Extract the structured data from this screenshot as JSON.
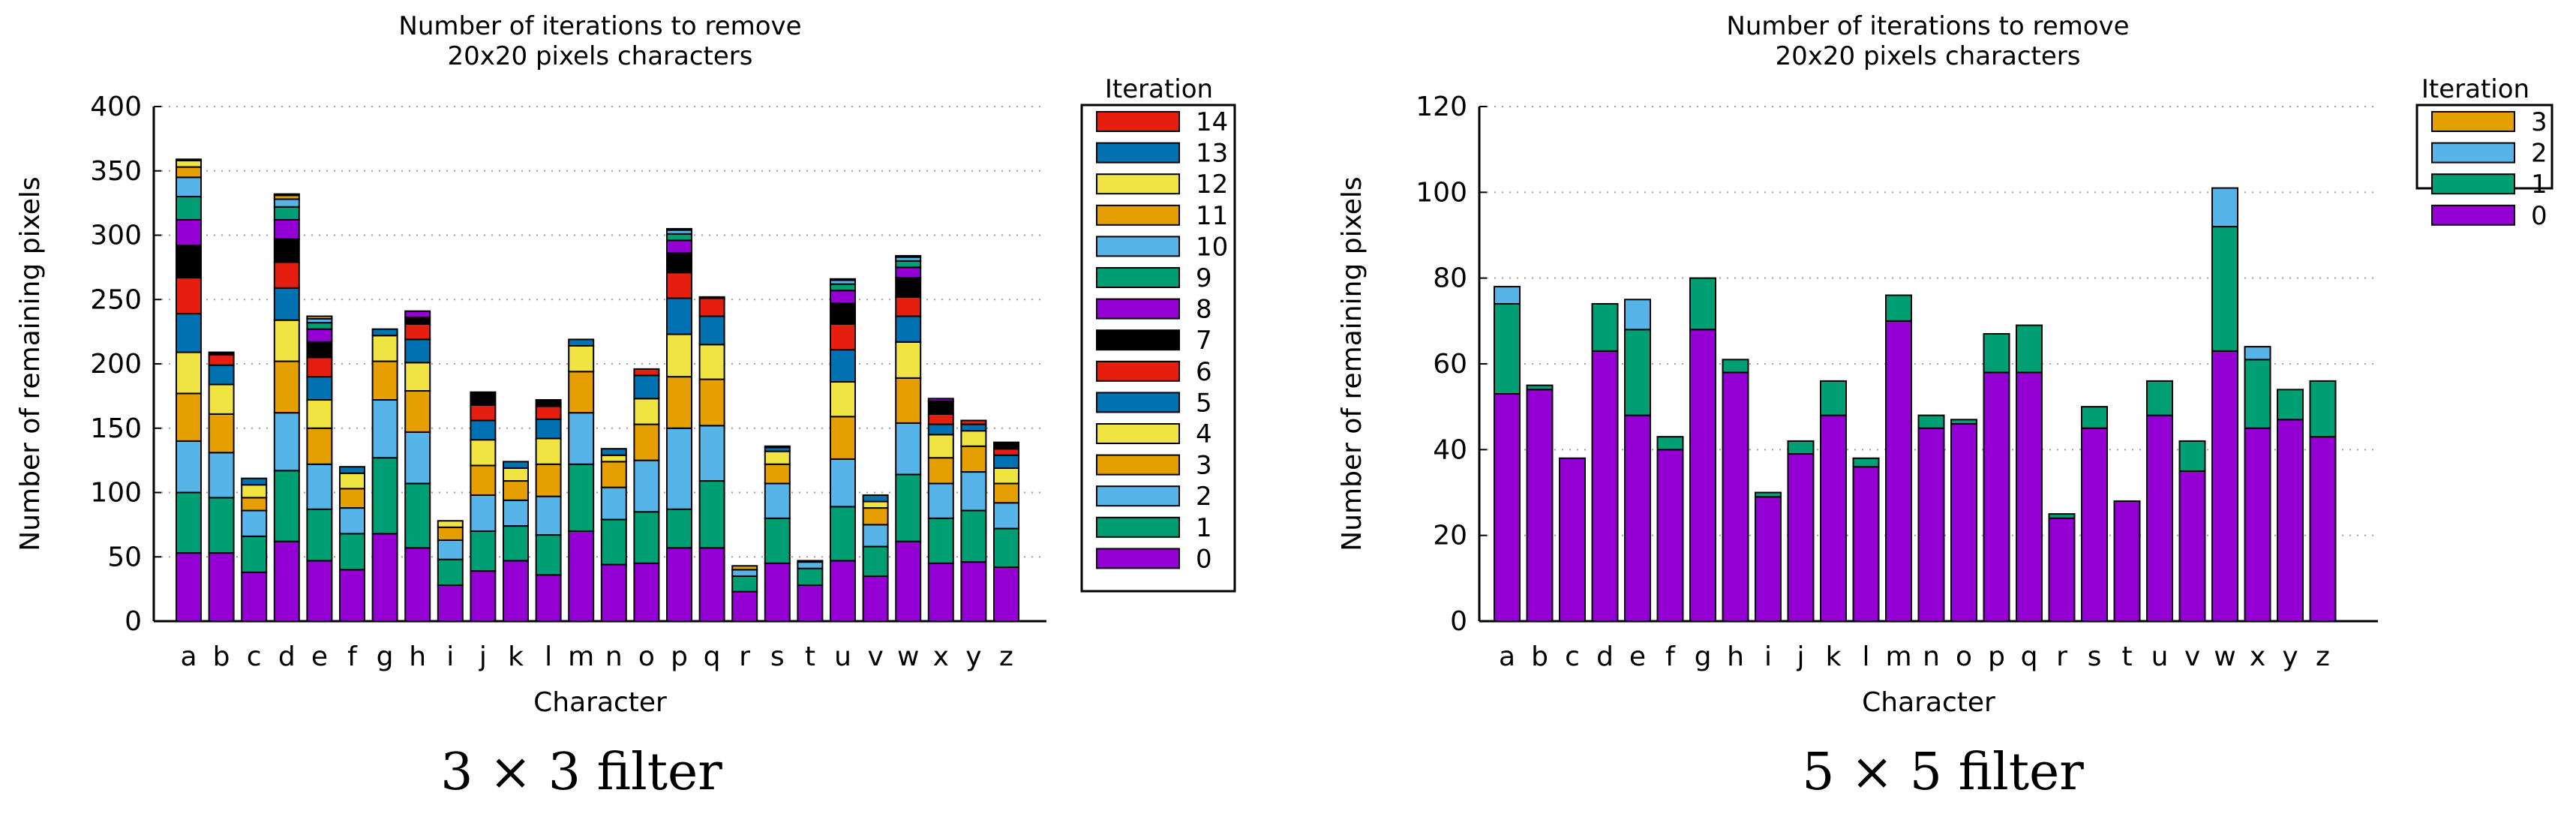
{
  "chart_data": [
    {
      "type": "bar",
      "stacked": true,
      "title": "Number of iterations to remove\n20x20 pixels characters",
      "xlabel": "Character",
      "ylabel": "Number of remaining pixels",
      "ylim": [
        0,
        400
      ],
      "yticks": [
        0,
        50,
        100,
        150,
        200,
        250,
        300,
        350,
        400
      ],
      "grid": "horizontal dotted",
      "caption": "3 × 3 filter",
      "legend_title": "Iteration",
      "legend_position": "right",
      "categories": [
        "a",
        "b",
        "c",
        "d",
        "e",
        "f",
        "g",
        "h",
        "i",
        "j",
        "k",
        "l",
        "m",
        "n",
        "o",
        "p",
        "q",
        "r",
        "s",
        "t",
        "u",
        "v",
        "w",
        "x",
        "y",
        "z"
      ],
      "series": [
        {
          "name": "0",
          "color": "#9400d3",
          "values": [
            53,
            53,
            38,
            62,
            47,
            40,
            68,
            57,
            28,
            39,
            47,
            36,
            70,
            44,
            45,
            57,
            57,
            23,
            45,
            28,
            47,
            35,
            62,
            45,
            46,
            42
          ]
        },
        {
          "name": "1",
          "color": "#009e73",
          "values": [
            47,
            43,
            28,
            55,
            40,
            28,
            59,
            50,
            20,
            31,
            27,
            31,
            52,
            35,
            40,
            30,
            52,
            12,
            35,
            13,
            42,
            23,
            52,
            35,
            40,
            30
          ]
        },
        {
          "name": "2",
          "color": "#56b4e9",
          "values": [
            40,
            35,
            20,
            45,
            35,
            20,
            45,
            40,
            15,
            28,
            20,
            30,
            40,
            25,
            40,
            63,
            43,
            5,
            27,
            5,
            37,
            17,
            40,
            27,
            30,
            20
          ]
        },
        {
          "name": "3",
          "color": "#e69f00",
          "values": [
            37,
            30,
            10,
            40,
            28,
            15,
            30,
            32,
            10,
            23,
            15,
            25,
            32,
            20,
            28,
            40,
            36,
            3,
            15,
            1,
            33,
            13,
            35,
            20,
            20,
            15
          ]
        },
        {
          "name": "4",
          "color": "#f0e442",
          "values": [
            32,
            23,
            10,
            32,
            22,
            12,
            20,
            22,
            5,
            20,
            10,
            20,
            20,
            5,
            20,
            33,
            27,
            0,
            10,
            0,
            27,
            5,
            28,
            18,
            12,
            12
          ]
        },
        {
          "name": "5",
          "color": "#0072b2",
          "values": [
            30,
            15,
            5,
            25,
            18,
            5,
            5,
            18,
            0,
            15,
            5,
            15,
            5,
            5,
            18,
            28,
            22,
            0,
            3,
            0,
            25,
            5,
            20,
            8,
            5,
            10
          ]
        },
        {
          "name": "6",
          "color": "#e51e10",
          "values": [
            28,
            8,
            0,
            20,
            15,
            0,
            0,
            12,
            0,
            12,
            0,
            10,
            0,
            0,
            5,
            20,
            14,
            0,
            1,
            0,
            20,
            0,
            15,
            8,
            3,
            5
          ]
        },
        {
          "name": "7",
          "color": "#000000",
          "values": [
            25,
            2,
            0,
            18,
            12,
            0,
            0,
            5,
            0,
            10,
            0,
            5,
            0,
            0,
            0,
            15,
            1,
            0,
            0,
            0,
            16,
            0,
            15,
            10,
            0,
            5
          ]
        },
        {
          "name": "8",
          "color": "#9400d3",
          "values": [
            20,
            0,
            0,
            15,
            10,
            0,
            0,
            5,
            0,
            0,
            0,
            0,
            0,
            0,
            0,
            10,
            0,
            0,
            0,
            0,
            10,
            0,
            8,
            2,
            0,
            0
          ]
        },
        {
          "name": "9",
          "color": "#009e73",
          "values": [
            18,
            0,
            0,
            10,
            5,
            0,
            0,
            0,
            0,
            0,
            0,
            0,
            0,
            0,
            0,
            5,
            0,
            0,
            0,
            0,
            5,
            0,
            5,
            0,
            0,
            0
          ]
        },
        {
          "name": "10",
          "color": "#56b4e9",
          "values": [
            15,
            0,
            0,
            6,
            3,
            0,
            0,
            0,
            0,
            0,
            0,
            0,
            0,
            0,
            0,
            3,
            0,
            0,
            0,
            0,
            3,
            0,
            3,
            0,
            0,
            0
          ]
        },
        {
          "name": "11",
          "color": "#e69f00",
          "values": [
            8,
            0,
            0,
            3,
            2,
            0,
            0,
            0,
            0,
            0,
            0,
            0,
            0,
            0,
            0,
            1,
            0,
            0,
            0,
            0,
            1,
            0,
            1,
            0,
            0,
            0
          ]
        },
        {
          "name": "12",
          "color": "#f0e442",
          "values": [
            5,
            0,
            0,
            1,
            0,
            0,
            0,
            0,
            0,
            0,
            0,
            0,
            0,
            0,
            0,
            0,
            0,
            0,
            0,
            0,
            0,
            0,
            0,
            0,
            0,
            0
          ]
        },
        {
          "name": "13",
          "color": "#0072b2",
          "values": [
            1,
            0,
            0,
            0,
            0,
            0,
            0,
            0,
            0,
            0,
            0,
            0,
            0,
            0,
            0,
            0,
            0,
            0,
            0,
            0,
            0,
            0,
            0,
            0,
            0,
            0
          ]
        },
        {
          "name": "14",
          "color": "#e51e10",
          "values": [
            0,
            0,
            0,
            0,
            0,
            0,
            0,
            0,
            0,
            0,
            0,
            0,
            0,
            0,
            0,
            0,
            0,
            0,
            0,
            0,
            0,
            0,
            0,
            0,
            0,
            0
          ]
        }
      ]
    },
    {
      "type": "bar",
      "stacked": true,
      "title": "Number of iterations to remove\n20x20 pixels characters",
      "xlabel": "Character",
      "ylabel": "Number of remaining pixels",
      "ylim": [
        0,
        120
      ],
      "yticks": [
        0,
        20,
        40,
        60,
        80,
        100,
        120
      ],
      "grid": "horizontal dotted",
      "caption": "5 × 5 filter",
      "legend_title": "Iteration",
      "legend_position": "right",
      "categories": [
        "a",
        "b",
        "c",
        "d",
        "e",
        "f",
        "g",
        "h",
        "i",
        "j",
        "k",
        "l",
        "m",
        "n",
        "o",
        "p",
        "q",
        "r",
        "s",
        "t",
        "u",
        "v",
        "w",
        "x",
        "y",
        "z"
      ],
      "series": [
        {
          "name": "0",
          "color": "#9400d3",
          "values": [
            53,
            54,
            38,
            63,
            48,
            40,
            68,
            58,
            29,
            39,
            48,
            36,
            70,
            45,
            46,
            58,
            58,
            24,
            45,
            28,
            48,
            35,
            63,
            45,
            47,
            43
          ]
        },
        {
          "name": "1",
          "color": "#009e73",
          "values": [
            21,
            1,
            0,
            11,
            20,
            3,
            12,
            3,
            1,
            3,
            8,
            2,
            6,
            3,
            1,
            9,
            11,
            1,
            5,
            0,
            8,
            7,
            29,
            16,
            7,
            13
          ]
        },
        {
          "name": "2",
          "color": "#56b4e9",
          "values": [
            4,
            0,
            0,
            0,
            7,
            0,
            0,
            0,
            0,
            0,
            0,
            0,
            0,
            0,
            0,
            0,
            0,
            0,
            0,
            0,
            0,
            0,
            9,
            3,
            0,
            0
          ]
        },
        {
          "name": "3",
          "color": "#e69f00",
          "values": [
            0,
            0,
            0,
            0,
            0,
            0,
            0,
            0,
            0,
            0,
            0,
            0,
            0,
            0,
            0,
            0,
            0,
            0,
            0,
            0,
            0,
            0,
            0,
            0,
            0,
            0
          ]
        }
      ]
    }
  ]
}
